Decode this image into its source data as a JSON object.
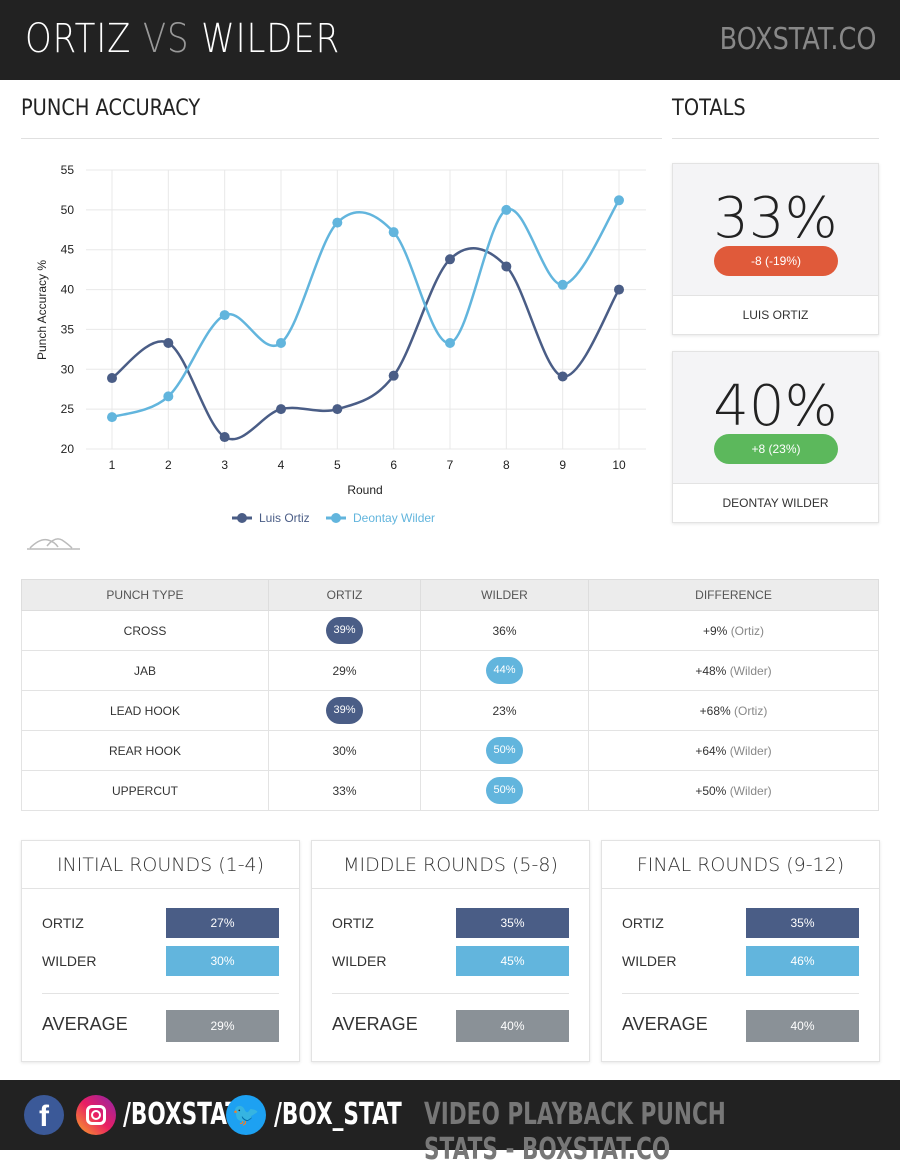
{
  "header": {
    "name1": "ORTIZ",
    "vs": "VS",
    "name2": "WILDER",
    "brand": "BOXSTAT.CO"
  },
  "sections": {
    "accuracy": "PUNCH ACCURACY",
    "totals": "TOTALS"
  },
  "totals": [
    {
      "pct": "33%",
      "change": "-8 (-19%)",
      "name": "LUIS ORTIZ",
      "color": "#e05a3a"
    },
    {
      "pct": "40%",
      "change": "+8 (23%)",
      "name": "DEONTAY WILDER",
      "color": "#5cb85c"
    }
  ],
  "chart_data": {
    "type": "line",
    "xlabel": "Round",
    "ylabel": "Punch Accuracy %",
    "ylim": [
      20,
      55
    ],
    "yticks": [
      "20",
      "25",
      "30",
      "35",
      "40",
      "45",
      "50",
      "55"
    ],
    "x": [
      "1",
      "2",
      "3",
      "4",
      "5",
      "6",
      "7",
      "8",
      "9",
      "10"
    ],
    "series": [
      {
        "name": "Luis Ortiz",
        "color": "#4a5d86",
        "values": [
          28.9,
          33.3,
          21.5,
          25,
          25,
          29.2,
          43.8,
          42.9,
          29.1,
          40
        ]
      },
      {
        "name": "Deontay Wilder",
        "color": "#62b5dd",
        "values": [
          24,
          26.6,
          36.8,
          33.3,
          48.4,
          47.2,
          33.3,
          50,
          40.6,
          51.2
        ]
      }
    ],
    "legend": "bottom",
    "grid": true
  },
  "table": {
    "headers": [
      "PUNCH TYPE",
      "ORTIZ",
      "WILDER",
      "DIFFERENCE"
    ],
    "rows": [
      {
        "type": "CROSS",
        "ortiz": "39%",
        "wilder": "36%",
        "diff": "+9%",
        "who": "(Ortiz)",
        "winner": "ortiz"
      },
      {
        "type": "JAB",
        "ortiz": "29%",
        "wilder": "44%",
        "diff": "+48%",
        "who": "(Wilder)",
        "winner": "wilder"
      },
      {
        "type": "LEAD HOOK",
        "ortiz": "39%",
        "wilder": "23%",
        "diff": "+68%",
        "who": "(Ortiz)",
        "winner": "ortiz"
      },
      {
        "type": "REAR HOOK",
        "ortiz": "30%",
        "wilder": "50%",
        "diff": "+64%",
        "who": "(Wilder)",
        "winner": "wilder"
      },
      {
        "type": "UPPERCUT",
        "ortiz": "33%",
        "wilder": "50%",
        "diff": "+50%",
        "who": "(Wilder)",
        "winner": "wilder"
      }
    ]
  },
  "rounds": [
    {
      "title": "INITIAL ROUNDS (1-4)",
      "ortiz": "27%",
      "wilder": "30%",
      "average": "29%"
    },
    {
      "title": "MIDDLE ROUNDS (5-8)",
      "ortiz": "35%",
      "wilder": "45%",
      "average": "40%"
    },
    {
      "title": "FINAL ROUNDS (9-12)",
      "ortiz": "35%",
      "wilder": "46%",
      "average": "40%"
    }
  ],
  "round_labels": {
    "ortiz": "ORTIZ",
    "wilder": "WILDER",
    "average": "AVERAGE"
  },
  "footer": {
    "instagram": "/BOXSTAT",
    "twitter": "/BOX_STAT",
    "tagline": "VIDEO PLAYBACK PUNCH STATS - BOXSTAT.CO"
  }
}
